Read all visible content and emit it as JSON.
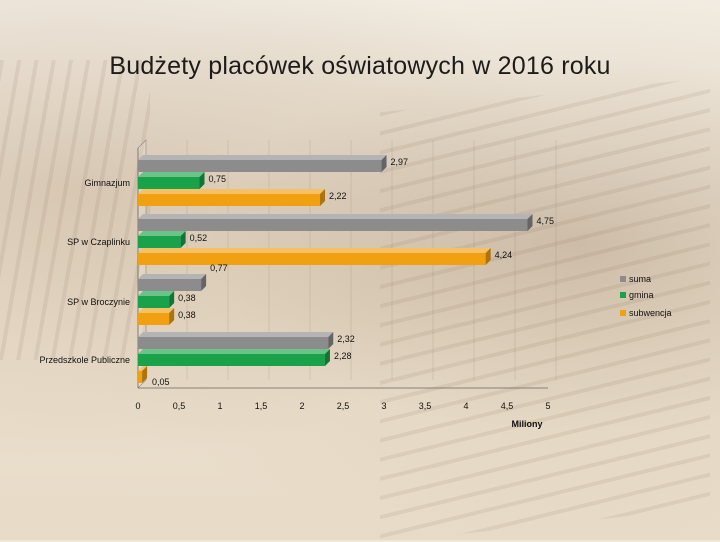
{
  "page": {
    "title": "Budżety placówek oświatowych w 2016 roku"
  },
  "chart_data": {
    "type": "bar",
    "orientation": "horizontal",
    "categories": [
      "Gimnazjum",
      "SP w Czaplinku",
      "SP w Broczynie",
      "Przedszkole Publiczne"
    ],
    "series": [
      {
        "name": "suma",
        "values": [
          2.97,
          4.75,
          0.77,
          2.32
        ],
        "labels": [
          "2,97",
          "4,75",
          "0,77",
          "2,32"
        ],
        "color": "#8c8c8c"
      },
      {
        "name": "gmina",
        "values": [
          0.75,
          0.52,
          0.38,
          2.28
        ],
        "labels": [
          "0,75",
          "0,52",
          "0,38",
          "2,28"
        ],
        "color": "#1aa24a"
      },
      {
        "name": "subwencja",
        "values": [
          2.22,
          4.24,
          0.38,
          0.05
        ],
        "labels": [
          "2,22",
          "4,24",
          "0,38",
          "0,05"
        ],
        "color": "#f0a010"
      }
    ],
    "xlim": [
      0,
      5
    ],
    "xticks": [
      0,
      0.5,
      1,
      1.5,
      2,
      2.5,
      3,
      3.5,
      4,
      4.5,
      5
    ],
    "xtick_labels": [
      "0",
      "0,5",
      "1",
      "1,5",
      "2",
      "2,5",
      "3",
      "3,5",
      "4",
      "4,5",
      "5"
    ],
    "xlabel": "Miliony",
    "legend_position": "right",
    "grid": true,
    "three_d": true
  }
}
